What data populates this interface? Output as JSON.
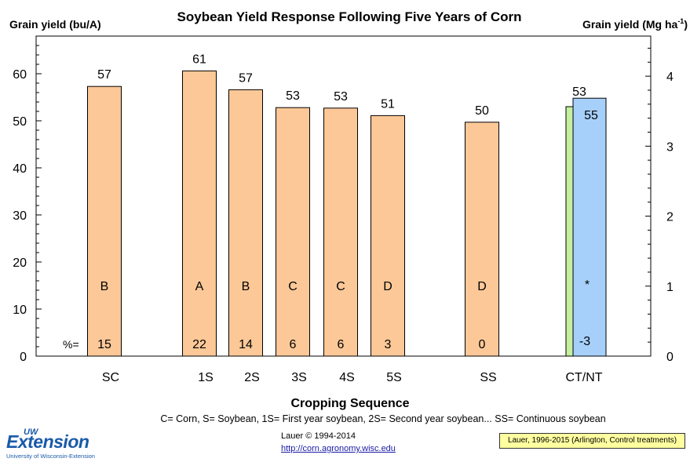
{
  "chart_data": {
    "type": "bar",
    "title": "Soybean Yield Response Following Five Years of Corn",
    "ylabel_left": "Grain yield (bu/A)",
    "ylabel_right": "Grain yield (Mg ha",
    "ylabel_right_sup": "-1",
    "ylabel_right_close": ")",
    "xlabel": "Cropping Sequence",
    "ylim": [
      0,
      68
    ],
    "yticks_left": [
      0,
      10,
      20,
      30,
      40,
      50,
      60
    ],
    "yticks_right": [
      0,
      1,
      2,
      3,
      4
    ],
    "categories": [
      "SC",
      "1S",
      "2S",
      "3S",
      "4S",
      "5S",
      "SS",
      "CT/NT"
    ],
    "bars": [
      {
        "category": "SC",
        "value": 57.3,
        "label": "57",
        "letter": "B",
        "pct": "15",
        "color": "#fcc898"
      },
      {
        "category": "1S",
        "value": 60.6,
        "label": "61",
        "letter": "A",
        "pct": "22",
        "color": "#fcc898"
      },
      {
        "category": "2S",
        "value": 56.6,
        "label": "57",
        "letter": "B",
        "pct": "14",
        "color": "#fcc898"
      },
      {
        "category": "3S",
        "value": 52.8,
        "label": "53",
        "letter": "C",
        "pct": "6",
        "color": "#fcc898"
      },
      {
        "category": "4S",
        "value": 52.7,
        "label": "53",
        "letter": "C",
        "pct": "6",
        "color": "#fcc898"
      },
      {
        "category": "5S",
        "value": 51.1,
        "label": "51",
        "letter": "D",
        "pct": "3",
        "color": "#fcc898"
      },
      {
        "category": "SS",
        "value": 49.7,
        "label": "50",
        "letter": "D",
        "pct": "0",
        "color": "#fcc898"
      }
    ],
    "pair": {
      "category": "CT/NT",
      "ct": {
        "name": "CT",
        "value": 53.0,
        "label": "53",
        "color": "#c6f0a0"
      },
      "nt": {
        "name": "NT",
        "value": 54.8,
        "label": "55",
        "color": "#a6d0fa"
      },
      "letter": "*",
      "pct": "-3"
    },
    "pct_prefix": "%=",
    "legend_note": "C= Corn, S= Soybean, 1S= First year soybean, 2S= Second year soybean... SS= Continuous soybean"
  },
  "footer": {
    "logo_uw": "UW",
    "logo_extension": "Extension",
    "logo_subtitle": "University of Wisconsin-Extension",
    "copyright": "Lauer © 1994-2014",
    "url": "http://corn.agronomy.wisc.edu",
    "source_note": "Lauer, 1996-2015 (Arlington, Control treatments)"
  }
}
